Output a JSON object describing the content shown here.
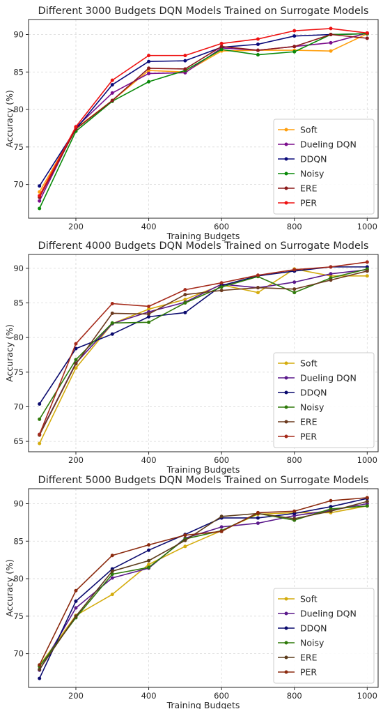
{
  "chart_data": [
    {
      "type": "line",
      "title": "Different 3000 Budgets DQN Models Trained on Surrogate Models",
      "xlabel": "Training Budgets",
      "ylabel": "Accuracy (%)",
      "xlim": [
        70,
        1030
      ],
      "ylim": [
        65.5,
        92.0
      ],
      "xticks": [
        200,
        400,
        600,
        800,
        1000
      ],
      "yticks": [
        70,
        75,
        80,
        85,
        90
      ],
      "grid": true,
      "legend_position": "lower-right",
      "x": [
        100,
        200,
        300,
        400,
        500,
        600,
        700,
        800,
        900,
        1000
      ],
      "series": [
        {
          "name": "Soft",
          "color": "#ff9f0e",
          "values": [
            69.0,
            77.5,
            81.2,
            85.2,
            85.0,
            87.8,
            87.9,
            87.9,
            87.8,
            90.1
          ]
        },
        {
          "name": "Dueling DQN",
          "color": "#7b0d8c",
          "values": [
            67.8,
            77.6,
            82.2,
            84.8,
            84.9,
            88.2,
            87.9,
            88.4,
            88.9,
            90.2
          ]
        },
        {
          "name": "DDQN",
          "color": "#0a0a7a",
          "values": [
            69.8,
            77.4,
            83.3,
            86.4,
            86.5,
            88.3,
            88.7,
            89.8,
            90.0,
            90.1
          ]
        },
        {
          "name": "Noisy",
          "color": "#0a8a0a",
          "values": [
            66.8,
            77.1,
            81.1,
            83.7,
            85.2,
            88.0,
            87.3,
            87.7,
            90.0,
            90.1
          ]
        },
        {
          "name": "ERE",
          "color": "#8b1a1a",
          "values": [
            68.3,
            77.4,
            81.2,
            85.5,
            85.4,
            88.4,
            87.9,
            88.4,
            90.0,
            89.5
          ]
        },
        {
          "name": "PER",
          "color": "#ee1111",
          "values": [
            68.5,
            77.7,
            83.9,
            87.2,
            87.2,
            88.8,
            89.4,
            90.5,
            90.8,
            90.2
          ]
        }
      ]
    },
    {
      "type": "line",
      "title": "Different 4000 Budgets DQN Models Trained on Surrogate Models",
      "xlabel": "Training Budgets",
      "ylabel": "Accuracy (%)",
      "xlim": [
        70,
        1030
      ],
      "ylim": [
        63.5,
        92.0
      ],
      "xticks": [
        200,
        400,
        600,
        800,
        1000
      ],
      "yticks": [
        65,
        70,
        75,
        80,
        85,
        90
      ],
      "grid": true,
      "legend_position": "lower-right",
      "x": [
        100,
        200,
        300,
        400,
        500,
        600,
        700,
        800,
        900,
        1000
      ],
      "series": [
        {
          "name": "Soft",
          "color": "#d4ac0d",
          "values": [
            64.7,
            75.6,
            82.0,
            84.1,
            85.5,
            87.6,
            86.5,
            89.9,
            88.9,
            88.9
          ]
        },
        {
          "name": "Dueling DQN",
          "color": "#5b1a8c",
          "values": [
            66.0,
            76.3,
            82.0,
            83.7,
            85.1,
            87.7,
            87.2,
            88.0,
            89.2,
            89.8
          ]
        },
        {
          "name": "DDQN",
          "color": "#0a0a6e",
          "values": [
            70.4,
            78.4,
            80.5,
            83.0,
            83.6,
            87.5,
            88.9,
            89.6,
            90.2,
            90.2
          ]
        },
        {
          "name": "Noisy",
          "color": "#2f7a0a",
          "values": [
            68.2,
            76.8,
            82.1,
            82.2,
            85.0,
            87.3,
            88.8,
            86.5,
            88.6,
            89.9
          ]
        },
        {
          "name": "ERE",
          "color": "#6b3a1f",
          "values": [
            65.9,
            76.2,
            83.5,
            83.4,
            86.2,
            86.8,
            87.2,
            87.0,
            88.3,
            89.6
          ]
        },
        {
          "name": "PER",
          "color": "#a52a1a",
          "values": [
            66.0,
            79.1,
            84.9,
            84.5,
            86.9,
            87.9,
            89.0,
            89.8,
            90.2,
            90.9
          ]
        }
      ]
    },
    {
      "type": "line",
      "title": "Different 5000 Budgets DQN Models Trained on Surrogate Models",
      "xlabel": "Training Budgets",
      "ylabel": "Accuracy (%)",
      "xlim": [
        70,
        1030
      ],
      "ylim": [
        65.5,
        92.0
      ],
      "xticks": [
        200,
        400,
        600,
        800,
        1000
      ],
      "yticks": [
        70,
        75,
        80,
        85,
        90
      ],
      "grid": true,
      "legend_position": "lower-right",
      "x": [
        100,
        200,
        300,
        400,
        500,
        600,
        700,
        800,
        900,
        1000
      ],
      "series": [
        {
          "name": "Soft",
          "color": "#d4ac0d",
          "values": [
            68.4,
            75.1,
            77.9,
            81.9,
            84.3,
            86.4,
            88.6,
            88.8,
            88.8,
            89.7
          ]
        },
        {
          "name": "Dueling DQN",
          "color": "#5b1a8c",
          "values": [
            67.8,
            76.1,
            80.1,
            81.4,
            85.4,
            86.9,
            87.4,
            88.4,
            89.1,
            90.0
          ]
        },
        {
          "name": "DDQN",
          "color": "#0a0a6e",
          "values": [
            66.7,
            77.0,
            81.3,
            83.8,
            85.9,
            88.1,
            88.1,
            88.7,
            89.6,
            90.7
          ]
        },
        {
          "name": "Noisy",
          "color": "#2f7a0a",
          "values": [
            68.3,
            74.8,
            80.6,
            81.5,
            85.3,
            86.4,
            88.7,
            87.8,
            89.3,
            89.7
          ]
        },
        {
          "name": "ERE",
          "color": "#5c3c1c",
          "values": [
            67.9,
            75.0,
            81.0,
            82.4,
            85.1,
            88.3,
            88.7,
            88.0,
            89.0,
            90.3
          ]
        },
        {
          "name": "PER",
          "color": "#8b2a0e",
          "values": [
            68.5,
            78.4,
            83.1,
            84.5,
            85.8,
            86.3,
            88.8,
            89.0,
            90.4,
            90.8
          ]
        }
      ]
    }
  ]
}
